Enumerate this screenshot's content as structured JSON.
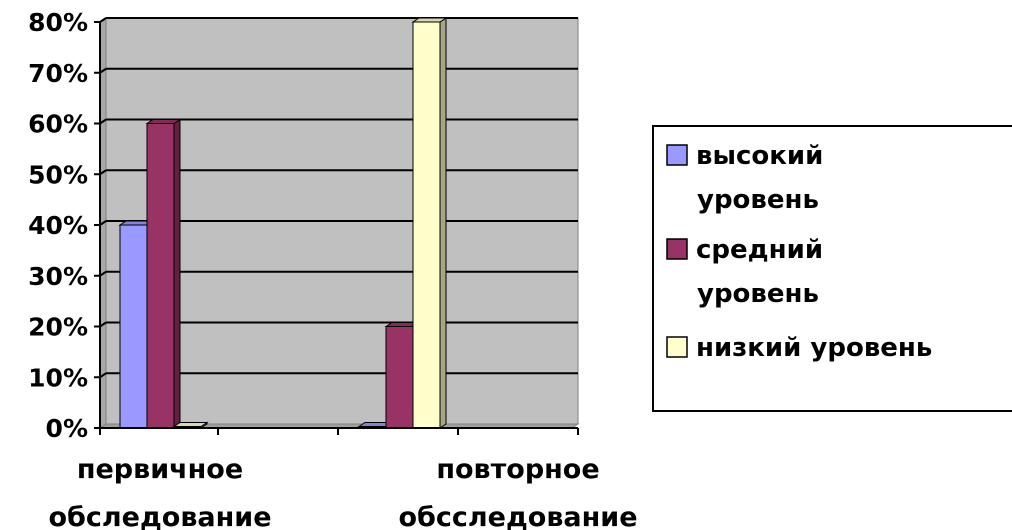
{
  "chart_data": {
    "type": "bar",
    "categories": [
      [
        "первичное",
        "обследование"
      ],
      [
        "повторное",
        "обсследование"
      ]
    ],
    "series": [
      {
        "name": "высокий уровень",
        "values": [
          40,
          0
        ],
        "color": "#9999ff"
      },
      {
        "name": "средний уровень",
        "values": [
          60,
          20
        ],
        "color": "#993366"
      },
      {
        "name": "низкий уровень",
        "values": [
          0,
          80
        ],
        "color": "#ffffcc"
      }
    ],
    "legend_lines": [
      [
        "высокий",
        "уровень"
      ],
      [
        "средний",
        "уровень"
      ],
      [
        "низкий уровень"
      ]
    ],
    "ylim": [
      0,
      80
    ],
    "y_ticks": [
      "0%",
      "10%",
      "20%",
      "30%",
      "40%",
      "50%",
      "60%",
      "70%",
      "80%"
    ],
    "grid": true,
    "legend_position": "right",
    "plot_background": "#c0c0c0"
  }
}
